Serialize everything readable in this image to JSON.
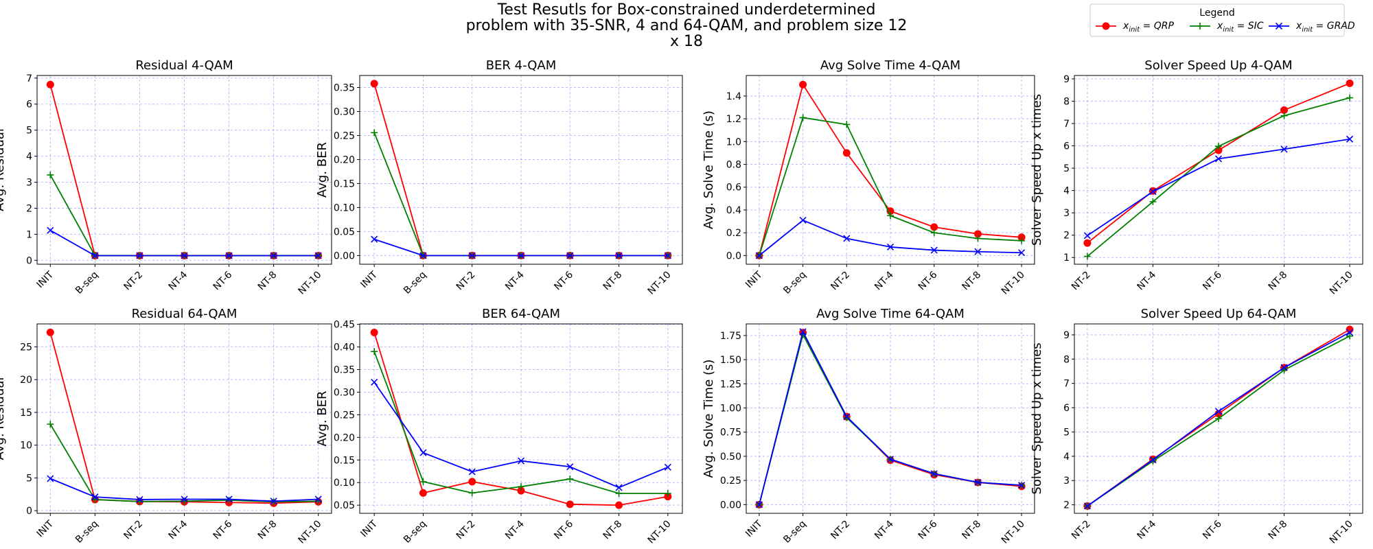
{
  "title": "Test Resutls for Box-constrained underdetermined problem with 35-SNR, 4 and 64-QAM, and problem size 12 x 18",
  "title_lines": [
    "Test Resutls for Box-constrained underdetermined",
    "problem with 35-SNR, 4 and 64-QAM, and problem size 12",
    "x 18"
  ],
  "legend": {
    "title": "Legend",
    "entries": [
      {
        "label": "x_init = QRP",
        "base": "x",
        "sub": "init",
        "rest": " = QRP",
        "color": "#ff0000",
        "marker": "circle"
      },
      {
        "label": "x_init = SIC",
        "base": "x",
        "sub": "init",
        "rest": " = SIC",
        "color": "#008000",
        "marker": "plus"
      },
      {
        "label": "x_init = GRAD",
        "base": "x",
        "sub": "init",
        "rest": " = GRAD",
        "color": "#0000ff",
        "marker": "x"
      }
    ]
  },
  "chart_data": [
    {
      "type": "line",
      "title": "Residual 4-QAM",
      "xlabel": "",
      "ylabel": "Avg. Residual",
      "categories": [
        "INIT",
        "B-seq",
        "NT-2",
        "NT-4",
        "NT-6",
        "NT-8",
        "NT-10"
      ],
      "ylim": [
        -0.15,
        7.1
      ],
      "yticks": [
        0,
        1,
        2,
        3,
        4,
        5,
        6,
        7
      ],
      "ytick_labels": [
        "0",
        "1",
        "2",
        "3",
        "4",
        "5",
        "6",
        "7"
      ],
      "grid": true,
      "series": [
        {
          "name": "QRP",
          "values": [
            6.75,
            0.18,
            0.18,
            0.18,
            0.18,
            0.18,
            0.18
          ]
        },
        {
          "name": "SIC",
          "values": [
            3.28,
            0.18,
            0.18,
            0.18,
            0.18,
            0.18,
            0.18
          ]
        },
        {
          "name": "GRAD",
          "values": [
            1.15,
            0.18,
            0.18,
            0.18,
            0.18,
            0.18,
            0.18
          ]
        }
      ]
    },
    {
      "type": "line",
      "title": "BER 4-QAM",
      "xlabel": "",
      "ylabel": "Avg. BER",
      "categories": [
        "INIT",
        "B-seq",
        "NT-2",
        "NT-4",
        "NT-6",
        "NT-8",
        "NT-10"
      ],
      "ylim": [
        -0.018,
        0.375
      ],
      "yticks": [
        0,
        0.05,
        0.1,
        0.15,
        0.2,
        0.25,
        0.3,
        0.35
      ],
      "ytick_labels": [
        "0.00",
        "0.05",
        "0.10",
        "0.15",
        "0.20",
        "0.25",
        "0.30",
        "0.35"
      ],
      "grid": true,
      "series": [
        {
          "name": "QRP",
          "values": [
            0.358,
            0,
            0,
            0,
            0,
            0,
            0
          ]
        },
        {
          "name": "SIC",
          "values": [
            0.256,
            0,
            0,
            0,
            0,
            0,
            0
          ]
        },
        {
          "name": "GRAD",
          "values": [
            0.034,
            0,
            0,
            0,
            0,
            0,
            0
          ]
        }
      ]
    },
    {
      "type": "line",
      "title": "Avg Solve Time 4-QAM",
      "xlabel": "",
      "ylabel": "Avg. Solve Time (s)",
      "categories": [
        "INIT",
        "B-seq",
        "NT-2",
        "NT-4",
        "NT-6",
        "NT-8",
        "NT-10"
      ],
      "ylim": [
        -0.076,
        1.58
      ],
      "yticks": [
        0,
        0.2,
        0.4,
        0.6,
        0.8,
        1.0,
        1.2,
        1.4
      ],
      "ytick_labels": [
        "0.0",
        "0.2",
        "0.4",
        "0.6",
        "0.8",
        "1.0",
        "1.2",
        "1.4"
      ],
      "grid": true,
      "series": [
        {
          "name": "QRP",
          "values": [
            0.0,
            1.5,
            0.9,
            0.39,
            0.25,
            0.19,
            0.16
          ]
        },
        {
          "name": "SIC",
          "values": [
            0.0,
            1.21,
            1.15,
            0.35,
            0.2,
            0.15,
            0.13
          ]
        },
        {
          "name": "GRAD",
          "values": [
            0.0,
            0.31,
            0.15,
            0.075,
            0.047,
            0.034,
            0.025
          ]
        }
      ]
    },
    {
      "type": "line",
      "title": "Solver Speed Up 4-QAM",
      "xlabel": "",
      "ylabel": "Solver Speed Up x times",
      "categories": [
        "NT-2",
        "NT-4",
        "NT-6",
        "NT-8",
        "NT-10"
      ],
      "ylim": [
        0.7,
        9.15
      ],
      "yticks": [
        1,
        2,
        3,
        4,
        5,
        6,
        7,
        8,
        9
      ],
      "ytick_labels": [
        "1",
        "2",
        "3",
        "4",
        "5",
        "6",
        "7",
        "8",
        "9"
      ],
      "grid": true,
      "series": [
        {
          "name": "QRP",
          "values": [
            1.65,
            3.98,
            5.8,
            7.6,
            8.8
          ]
        },
        {
          "name": "SIC",
          "values": [
            1.05,
            3.5,
            5.98,
            7.35,
            8.15
          ]
        },
        {
          "name": "GRAD",
          "values": [
            1.98,
            3.95,
            5.42,
            5.85,
            6.3
          ]
        }
      ]
    },
    {
      "type": "line",
      "title": "Residual 64-QAM",
      "xlabel": "",
      "ylabel": "Avg. Residual",
      "categories": [
        "INIT",
        "B-seq",
        "NT-2",
        "NT-4",
        "NT-6",
        "NT-8",
        "NT-10"
      ],
      "ylim": [
        -0.4,
        28.5
      ],
      "yticks": [
        0,
        5,
        10,
        15,
        20,
        25
      ],
      "ytick_labels": [
        "0",
        "5",
        "10",
        "15",
        "20",
        "25"
      ],
      "grid": true,
      "series": [
        {
          "name": "QRP",
          "values": [
            27.2,
            1.7,
            1.4,
            1.35,
            1.25,
            1.15,
            1.35
          ]
        },
        {
          "name": "SIC",
          "values": [
            13.2,
            1.7,
            1.4,
            1.45,
            1.6,
            1.35,
            1.45
          ]
        },
        {
          "name": "GRAD",
          "values": [
            4.9,
            2.1,
            1.7,
            1.75,
            1.75,
            1.45,
            1.75
          ]
        }
      ]
    },
    {
      "type": "line",
      "title": "BER 64-QAM",
      "xlabel": "",
      "ylabel": "Avg. BER",
      "categories": [
        "INIT",
        "B-seq",
        "NT-2",
        "NT-4",
        "NT-6",
        "NT-8",
        "NT-10"
      ],
      "ylim": [
        0.032,
        0.451
      ],
      "yticks": [
        0.05,
        0.1,
        0.15,
        0.2,
        0.25,
        0.3,
        0.35,
        0.4,
        0.45
      ],
      "ytick_labels": [
        "0.05",
        "0.10",
        "0.15",
        "0.20",
        "0.25",
        "0.30",
        "0.35",
        "0.40",
        "0.45"
      ],
      "grid": true,
      "series": [
        {
          "name": "QRP",
          "values": [
            0.432,
            0.077,
            0.102,
            0.082,
            0.052,
            0.05,
            0.069
          ]
        },
        {
          "name": "SIC",
          "values": [
            0.39,
            0.102,
            0.077,
            0.091,
            0.108,
            0.076,
            0.076
          ]
        },
        {
          "name": "GRAD",
          "values": [
            0.322,
            0.166,
            0.124,
            0.148,
            0.135,
            0.089,
            0.134
          ]
        }
      ]
    },
    {
      "type": "line",
      "title": "Avg Solve Time 64-QAM",
      "xlabel": "",
      "ylabel": "Avg. Solve Time (s)",
      "categories": [
        "INIT",
        "B-seq",
        "NT-2",
        "NT-4",
        "NT-6",
        "NT-8",
        "NT-10"
      ],
      "ylim": [
        -0.09,
        1.87
      ],
      "yticks": [
        0,
        0.25,
        0.5,
        0.75,
        1.0,
        1.25,
        1.5,
        1.75
      ],
      "ytick_labels": [
        "0.00",
        "0.25",
        "0.50",
        "0.75",
        "1.00",
        "1.25",
        "1.50",
        "1.75"
      ],
      "grid": true,
      "series": [
        {
          "name": "QRP",
          "values": [
            0.0,
            1.78,
            0.91,
            0.46,
            0.31,
            0.23,
            0.19
          ]
        },
        {
          "name": "SIC",
          "values": [
            0.0,
            1.76,
            0.9,
            0.47,
            0.32,
            0.23,
            0.2
          ]
        },
        {
          "name": "GRAD",
          "values": [
            0.0,
            1.79,
            0.91,
            0.47,
            0.32,
            0.23,
            0.2
          ]
        }
      ]
    },
    {
      "type": "line",
      "title": "Solver Speed Up 64-QAM",
      "xlabel": "",
      "ylabel": "Solver Speed Up x times",
      "categories": [
        "NT-2",
        "NT-4",
        "NT-6",
        "NT-8",
        "NT-10"
      ],
      "ylim": [
        1.65,
        9.45
      ],
      "yticks": [
        2,
        3,
        4,
        5,
        6,
        7,
        8,
        9
      ],
      "ytick_labels": [
        "2",
        "3",
        "4",
        "5",
        "6",
        "7",
        "8",
        "9"
      ],
      "grid": true,
      "series": [
        {
          "name": "QRP",
          "values": [
            1.95,
            3.88,
            5.75,
            7.65,
            9.22
          ]
        },
        {
          "name": "SIC",
          "values": [
            1.95,
            3.8,
            5.55,
            7.55,
            8.95
          ]
        },
        {
          "name": "GRAD",
          "values": [
            1.95,
            3.85,
            5.85,
            7.65,
            9.1
          ]
        }
      ]
    }
  ]
}
